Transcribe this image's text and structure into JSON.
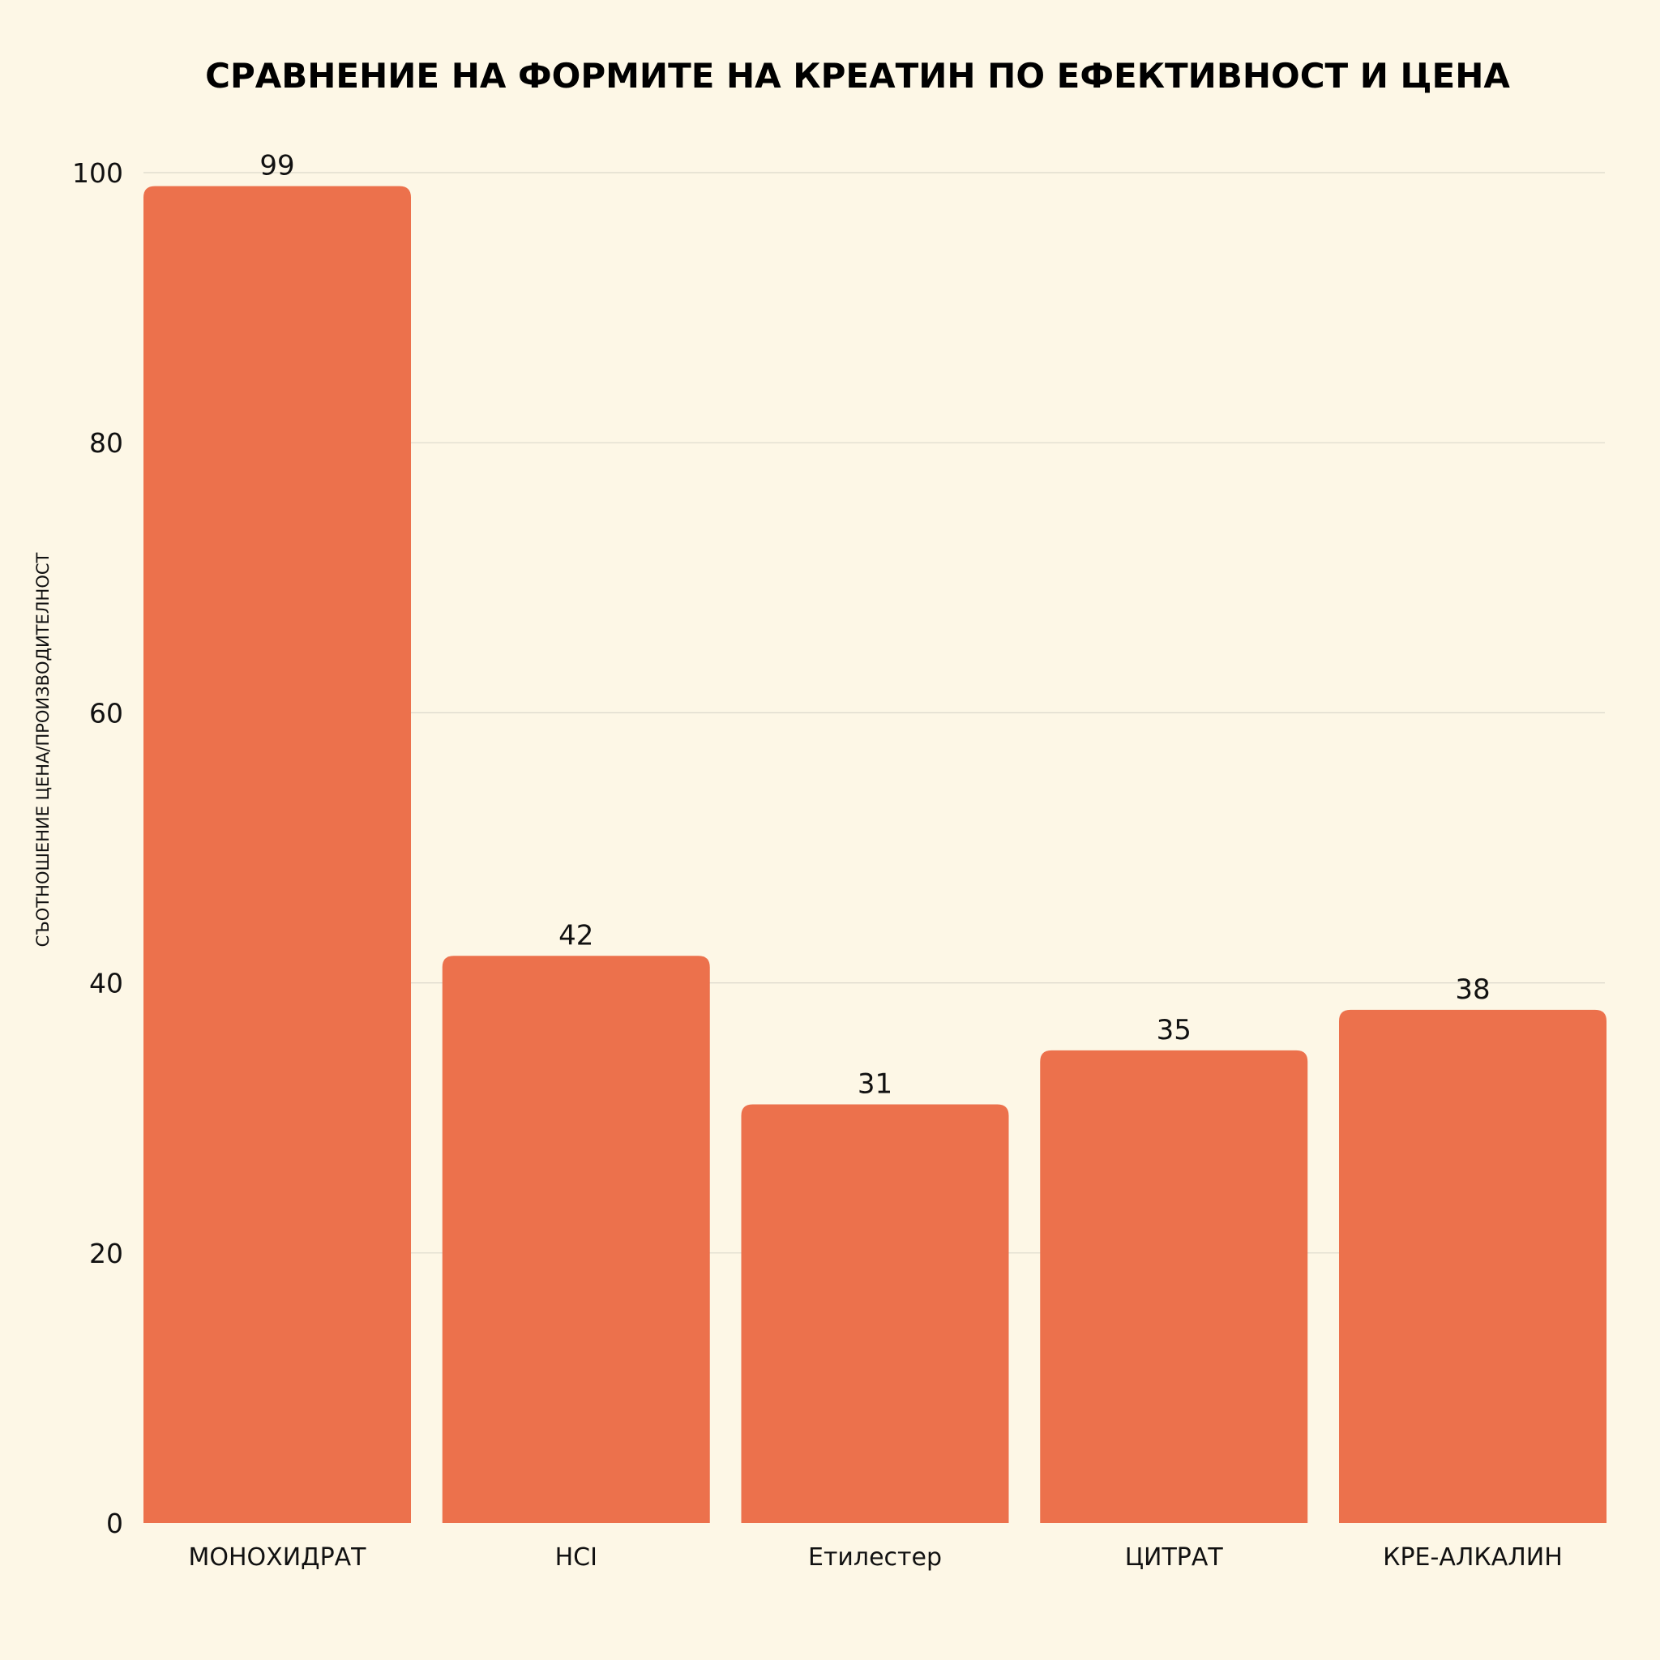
{
  "colors": {
    "background": "#fdf7e6",
    "bar": "#ec714c",
    "grid": "#dcd8cb",
    "text": "#111111"
  },
  "chart_data": {
    "type": "bar",
    "title": "СРАВНЕНИЕ НА ФОРМИТЕ НА КРЕАТИН ПО ЕФЕКТИВНОСТ И ЦЕНА",
    "xlabel": "",
    "ylabel": "СЪОТНОШЕНИЕ ЦЕНА/ПРОИЗВОДИТЕЛНОСТ",
    "categories": [
      "МОНОХИДРАТ",
      "HCI",
      "Етилестер",
      "ЦИТРАТ",
      "КРЕ-АЛКАЛИН"
    ],
    "values": [
      99,
      42,
      31,
      35,
      38
    ],
    "ylim": [
      0,
      100
    ],
    "yticks": [
      0,
      20,
      40,
      60,
      80,
      100
    ],
    "grid": true,
    "legend": "none"
  }
}
